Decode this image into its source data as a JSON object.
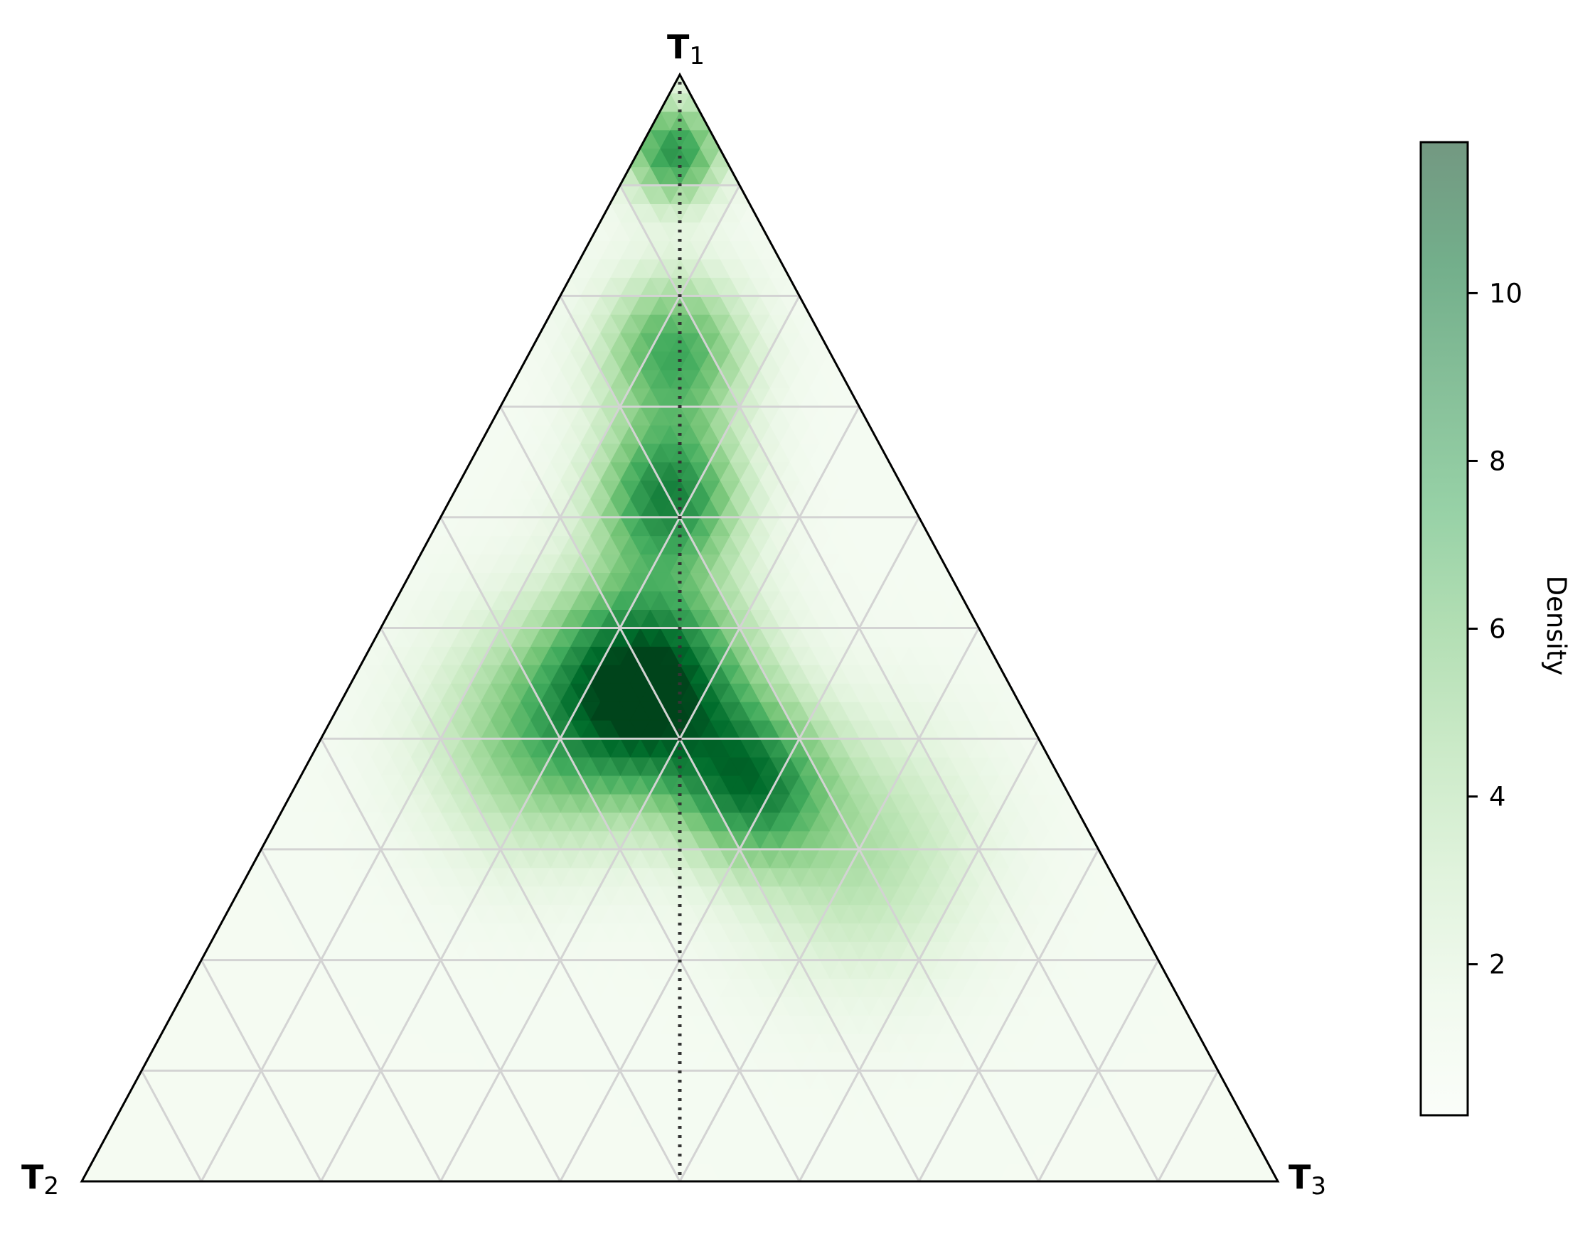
{
  "chart_data": {
    "type": "heatmap",
    "subtype": "ternary-density",
    "vertices": [
      {
        "label": "T",
        "subscript": "1",
        "position": "top"
      },
      {
        "label": "T",
        "subscript": "2",
        "position": "bottom-left"
      },
      {
        "label": "T",
        "subscript": "3",
        "position": "bottom-right"
      }
    ],
    "grid": true,
    "grid_divisions": 10,
    "reference_line": "median line from T1 to midpoint of T2–T3 (dotted)",
    "colormap": "Greens",
    "colorbar": {
      "label": "Density",
      "ticks": [
        2,
        4,
        6,
        8,
        10
      ],
      "range": [
        0.2,
        11.8
      ],
      "placement": "right"
    },
    "density_clusters": [
      {
        "t1": 0.45,
        "t2": 0.3,
        "t3": 0.25,
        "peak": 11.5,
        "spread": 0.08
      },
      {
        "t1": 0.62,
        "t2": 0.2,
        "t3": 0.18,
        "peak": 8.5,
        "spread": 0.06
      },
      {
        "t1": 0.75,
        "t2": 0.13,
        "t3": 0.12,
        "peak": 7.0,
        "spread": 0.06
      },
      {
        "t1": 0.93,
        "t2": 0.04,
        "t3": 0.03,
        "peak": 8.0,
        "spread": 0.04
      },
      {
        "t1": 0.36,
        "t2": 0.26,
        "t3": 0.38,
        "peak": 7.5,
        "spread": 0.06
      },
      {
        "t1": 0.4,
        "t2": 0.42,
        "t3": 0.18,
        "peak": 5.0,
        "spread": 0.09
      },
      {
        "t1": 0.3,
        "t2": 0.2,
        "t3": 0.5,
        "peak": 3.5,
        "spread": 0.1
      }
    ],
    "background_density": 0.4,
    "colors": {
      "cmap": [
        "#f7fcf5",
        "#e5f5e0",
        "#c7e9c0",
        "#a1d99b",
        "#74c476",
        "#41ab5d",
        "#238b45",
        "#006d2c",
        "#00441b"
      ],
      "grid": "#d3d3d3",
      "axis": "#000000",
      "median": "#333333"
    }
  }
}
